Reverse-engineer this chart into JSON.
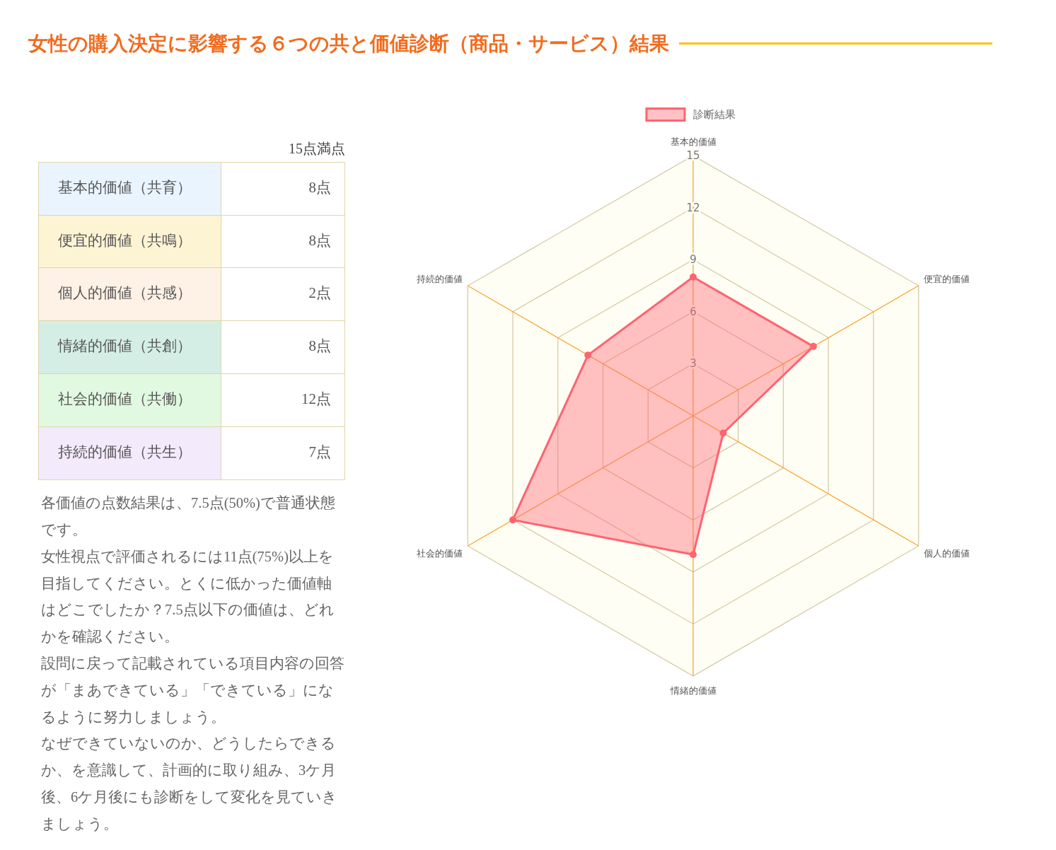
{
  "chart_data": [
    {
      "type": "other",
      "title": "女性の購入決定に影響する６つの共と価値診断（商品・サービス）結果",
      "categories": [
        "基本的価値（共育）",
        "便宜的価値（共鳴）",
        "個人的価値（共感）",
        "情緒的価値（共創）",
        "社会的価値（共働）",
        "持続的価値（共生）"
      ],
      "value_labels": [
        "8点",
        "8点",
        "2点",
        "8点",
        "12点",
        "7点"
      ],
      "colors": [
        "#e9f4ff",
        "#fdf4d4",
        "#fef1e5",
        "#d5eee5",
        "#e2f9e1",
        "#f3eafc"
      ],
      "annotations": [
        "15点満点",
        "各価値の点数結果は、7.5点(50%)で普通状態です。",
        "女性視点で評価されるには11点(75%)以上を目指してください。とくに低かった価値軸はどこでしたか？7.5点以下の価値は、どれかを確認ください。",
        "設問に戻って記載されている項目内容の回答が「まあできている」「できている」になるように努力しましょう。",
        "なぜできていないのか、どうしたらできるか、を意識して、計画的に取り組み、3ケ月後、6ケ月後にも診断をして変化を見ていきましょう。"
      ]
    },
    {
      "type": "radar",
      "categories": [
        "基本的価値",
        "便宜的価値",
        "個人的価値",
        "情緒的価値",
        "社会的価値",
        "持続的価値"
      ],
      "series": [
        {
          "name": "診断結果",
          "color": "#ff6370",
          "values": [
            8,
            8,
            2,
            8,
            12,
            7
          ]
        }
      ],
      "ylim": [
        0,
        15
      ],
      "yticks": [
        3,
        6,
        9,
        12,
        15
      ],
      "grid": true,
      "legend": "top",
      "marker": "circle"
    }
  ]
}
